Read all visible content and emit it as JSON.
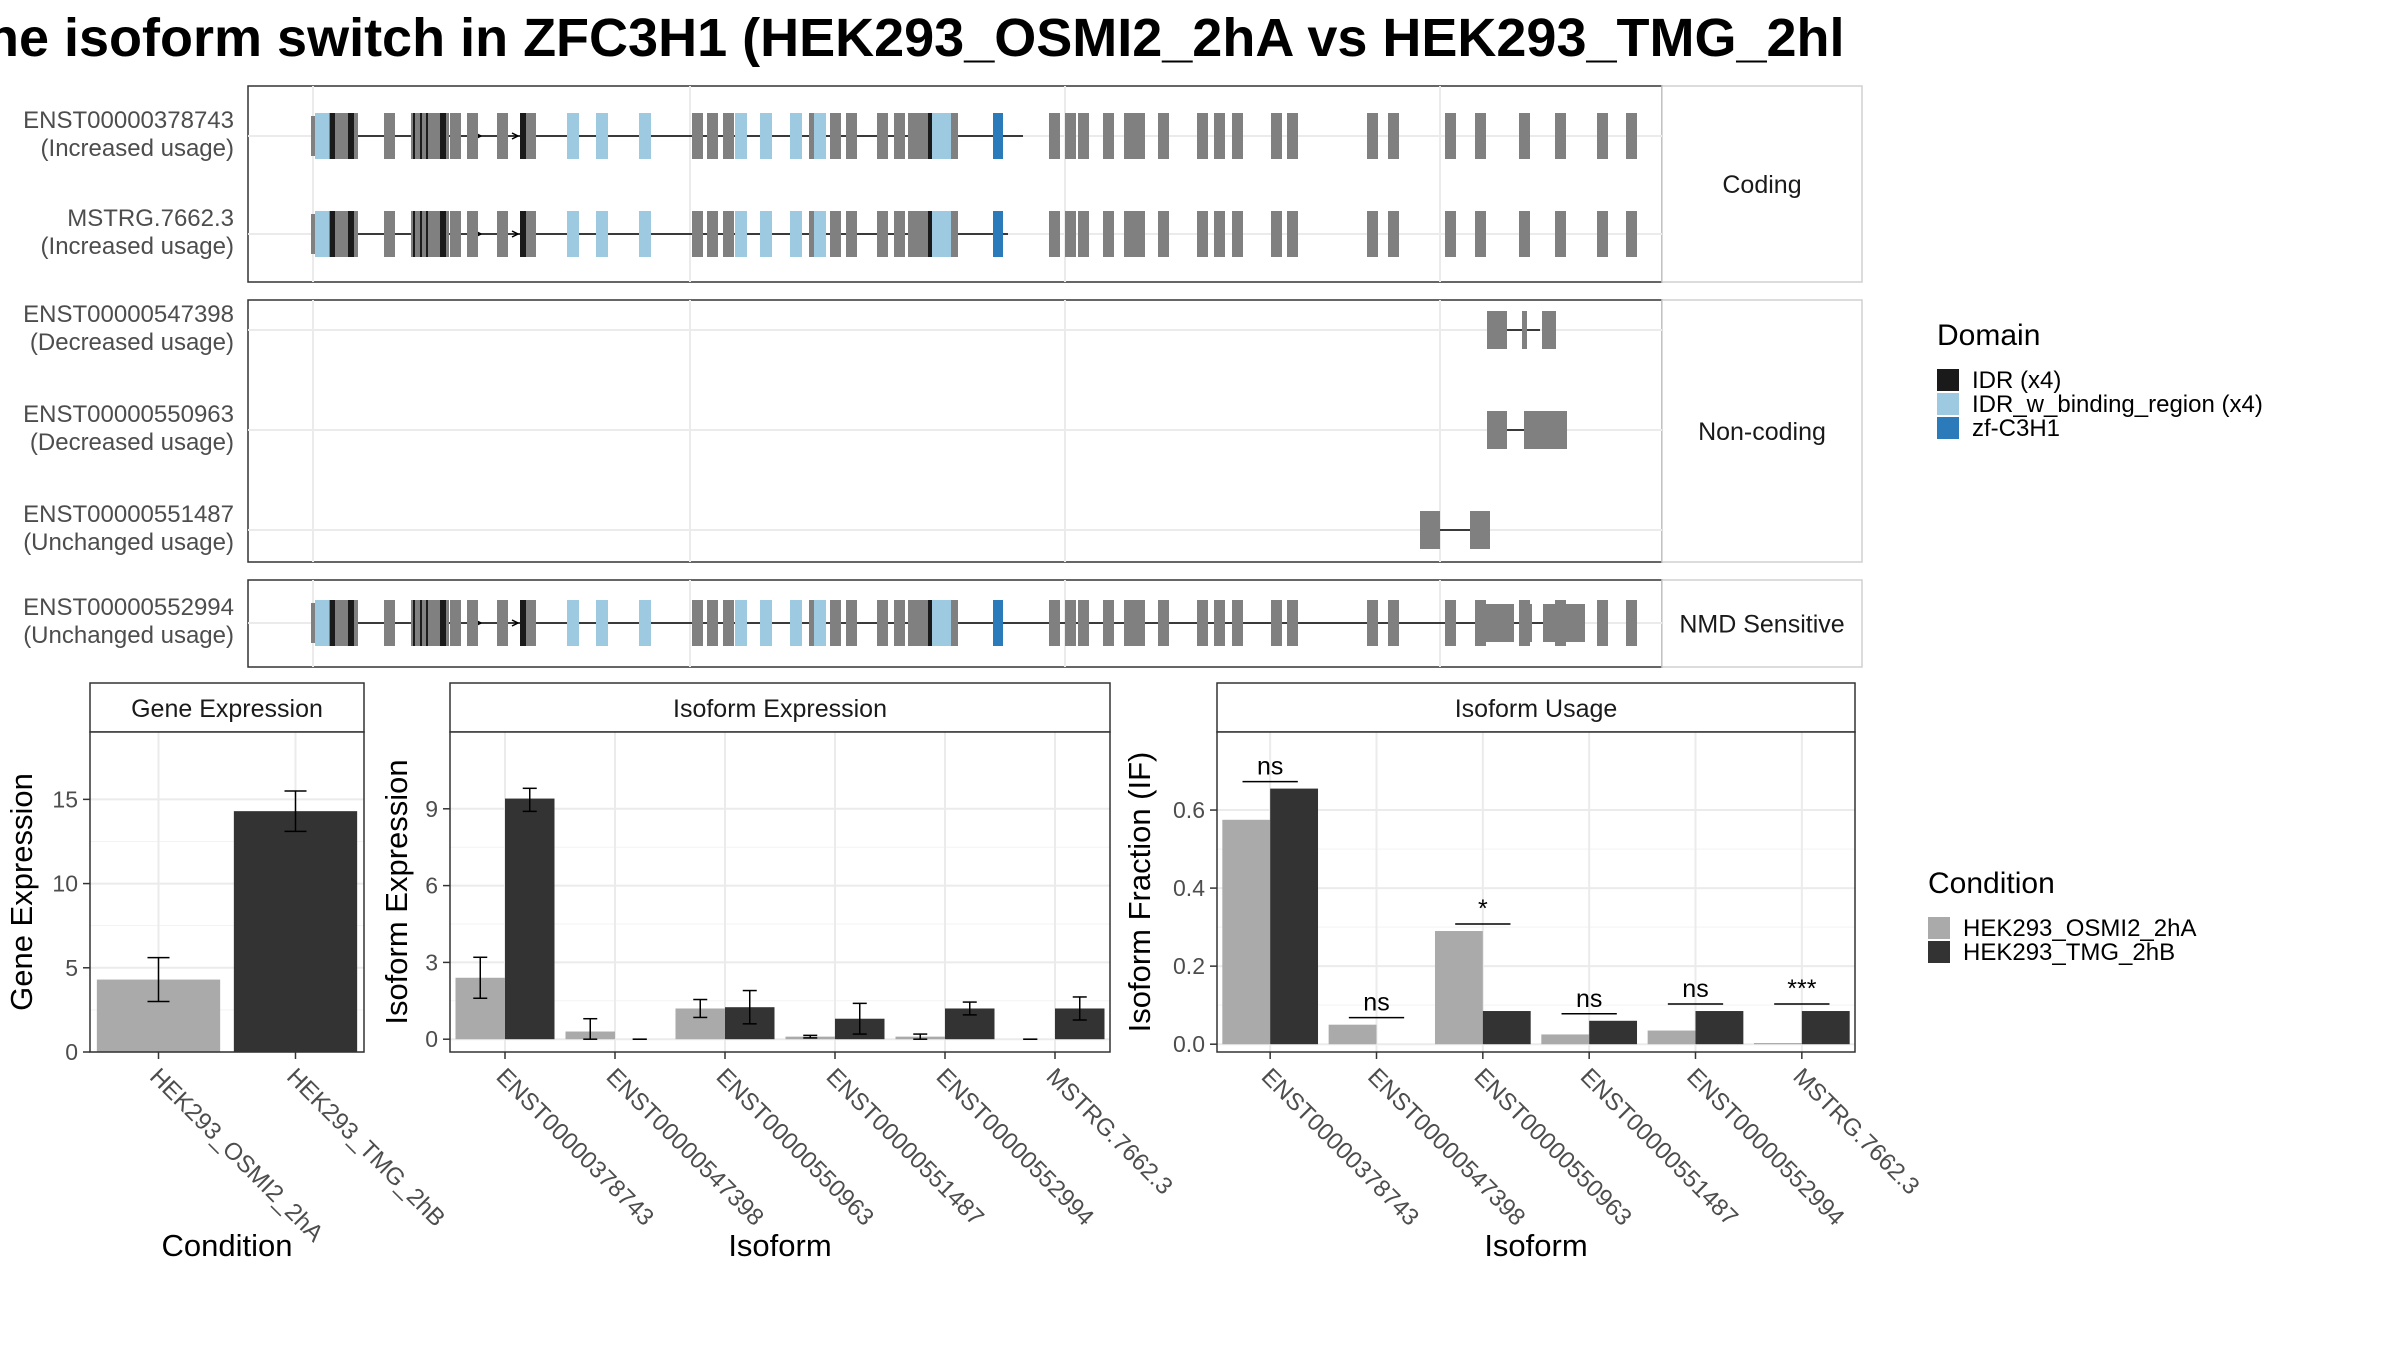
{
  "title": "ne isoform switch in ZFC3H1 (HEK293_OSMI2_2hA vs HEK293_TMG_2hl",
  "structure": {
    "panels": [
      {
        "label": "Coding",
        "tracks": [
          {
            "id": "ENST00000378743",
            "usage": "(Increased usage)",
            "type": "full",
            "utr_end": 1033
          },
          {
            "id": "MSTRG.7662.3",
            "usage": "(Increased usage)",
            "type": "full",
            "utr_end": 1018
          }
        ]
      },
      {
        "label": "Non-coding",
        "tracks": [
          {
            "id": "ENST00000547398",
            "usage": "(Decreased usage)",
            "type": "nc1"
          },
          {
            "id": "ENST00000550963",
            "usage": "(Decreased usage)",
            "type": "nc2"
          },
          {
            "id": "ENST00000551487",
            "usage": "(Unchanged usage)",
            "type": "nc3"
          }
        ]
      },
      {
        "label": "NMD Sensitive",
        "tracks": [
          {
            "id": "ENST00000552994",
            "usage": "(Unchanged usage)",
            "type": "nmd"
          }
        ]
      }
    ]
  },
  "domain_legend": {
    "title": "Domain",
    "items": [
      {
        "label": "IDR (x4)",
        "color": "#1a1a1a"
      },
      {
        "label": "IDR_w_binding_region (x4)",
        "color": "#9ecae1"
      },
      {
        "label": "zf-C3H1",
        "color": "#2b7bba"
      }
    ]
  },
  "condition_legend": {
    "title": "Condition",
    "items": [
      {
        "label": "HEK293_OSMI2_2hA",
        "color": "#aaaaaa"
      },
      {
        "label": "HEK293_TMG_2hB",
        "color": "#333333"
      }
    ]
  },
  "chart_data": [
    {
      "type": "bar",
      "title": "Gene Expression",
      "xlabel": "Condition",
      "ylabel": "Gene Expression",
      "ylim": [
        0,
        19
      ],
      "yticks": [
        0,
        5,
        10,
        15
      ],
      "categories": [
        "HEK293_OSMI2_2hA",
        "HEK293_TMG_2hB"
      ],
      "values": [
        4.3,
        14.3
      ],
      "errors": [
        [
          3.0,
          5.6
        ],
        [
          13.1,
          15.5
        ]
      ],
      "colors": [
        "#aaaaaa",
        "#333333"
      ]
    },
    {
      "type": "bar",
      "title": "Isoform Expression",
      "xlabel": "Isoform",
      "ylabel": "Isoform Expression",
      "ylim": [
        -0.5,
        12
      ],
      "yticks": [
        0,
        3,
        6,
        9
      ],
      "categories": [
        "ENST00000378743",
        "ENST00000547398",
        "ENST00000550963",
        "ENST00000551487",
        "ENST00000552994",
        "MSTRG.7662.3"
      ],
      "series": [
        {
          "name": "HEK293_OSMI2_2hA",
          "color": "#aaaaaa",
          "values": [
            2.4,
            0.3,
            1.2,
            0.1,
            0.1,
            0.0
          ],
          "errors": [
            [
              1.6,
              3.2
            ],
            [
              0.0,
              0.8
            ],
            [
              0.85,
              1.55
            ],
            [
              0.05,
              0.15
            ],
            [
              0.0,
              0.2
            ],
            [
              0.0,
              0.0
            ]
          ]
        },
        {
          "name": "HEK293_TMG_2hB",
          "color": "#333333",
          "values": [
            9.4,
            0.0,
            1.25,
            0.8,
            1.2,
            1.2
          ],
          "errors": [
            [
              8.9,
              9.8
            ],
            [
              0.0,
              0.0
            ],
            [
              0.6,
              1.9
            ],
            [
              0.2,
              1.4
            ],
            [
              0.95,
              1.45
            ],
            [
              0.75,
              1.65
            ]
          ]
        }
      ]
    },
    {
      "type": "bar",
      "title": "Isoform Usage",
      "xlabel": "Isoform",
      "ylabel": "Isoform Fraction (IF)",
      "ylim": [
        -0.02,
        0.8
      ],
      "yticks": [
        0.0,
        0.2,
        0.4,
        0.6
      ],
      "ytick_labels": [
        "0.0",
        "0.2",
        "0.4",
        "0.6"
      ],
      "categories": [
        "ENST00000378743",
        "ENST00000547398",
        "ENST00000550963",
        "ENST00000551487",
        "ENST00000552994",
        "MSTRG.7662.3"
      ],
      "series": [
        {
          "name": "HEK293_OSMI2_2hA",
          "color": "#aaaaaa",
          "values": [
            0.575,
            0.05,
            0.29,
            0.025,
            0.035,
            0.003
          ]
        },
        {
          "name": "HEK293_TMG_2hB",
          "color": "#333333",
          "values": [
            0.655,
            0.0,
            0.085,
            0.06,
            0.085,
            0.085
          ]
        }
      ],
      "significance": [
        "ns",
        "ns",
        "*",
        "ns",
        "ns",
        "***"
      ]
    }
  ]
}
